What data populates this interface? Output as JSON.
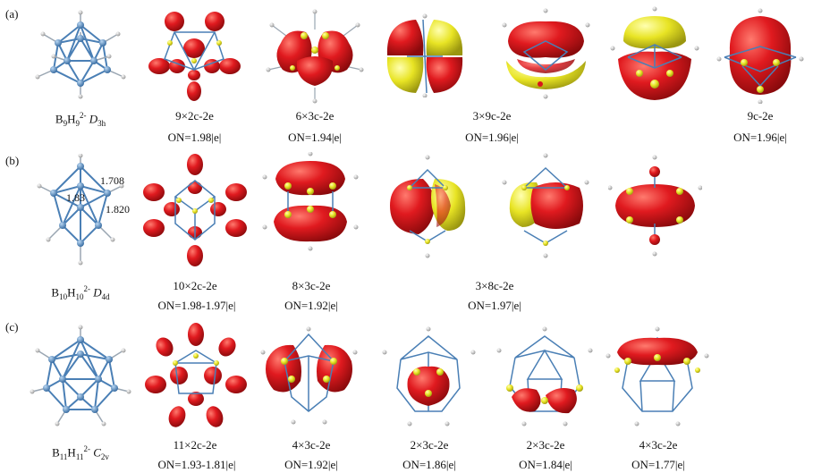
{
  "rows": [
    {
      "label": "(a)",
      "formula": {
        "b": "B",
        "bn": "9",
        "h": "H",
        "hn": "9",
        "charge": "2-",
        "sym": "D",
        "symsub": "3h"
      },
      "panels": [
        {
          "bonding": "9×2c-2e",
          "on": "ON=1.98|e|"
        },
        {
          "bonding": "6×3c-2e",
          "on": "ON=1.94|e|"
        },
        {
          "bonding": "3×9c-2e",
          "on": "ON=1.96|e|"
        },
        {
          "bonding": "9c-2e",
          "on": "ON=1.96|e|"
        }
      ]
    },
    {
      "label": "(b)",
      "formula": {
        "b": "B",
        "bn": "10",
        "h": "H",
        "hn": "10",
        "charge": "2-",
        "sym": "D",
        "symsub": "4d"
      },
      "bond_lengths": [
        "1.708",
        "1.83",
        "1.820"
      ],
      "panels": [
        {
          "bonding": "10×2c-2e",
          "on": "ON=1.98-1.97|e|"
        },
        {
          "bonding": "8×3c-2e",
          "on": "ON=1.92|e|"
        },
        {
          "bonding": "3×8c-2e",
          "on": "ON=1.97|e|"
        }
      ]
    },
    {
      "label": "(c)",
      "formula": {
        "b": "B",
        "bn": "11",
        "h": "H",
        "hn": "11",
        "charge": "2-",
        "sym": "C",
        "symsub": "2v"
      },
      "panels": [
        {
          "bonding": "11×2c-2e",
          "on": "ON=1.93-1.81|e|"
        },
        {
          "bonding": "4×3c-2e",
          "on": "ON=1.92|e|"
        },
        {
          "bonding": "2×3c-2e",
          "on": "ON=1.86|e|"
        },
        {
          "bonding": "2×3c-2e",
          "on": "ON=1.84|e|"
        },
        {
          "bonding": "4×3c-2e",
          "on": "ON=1.77|e|"
        }
      ]
    }
  ],
  "colors": {
    "lobe_red": "#d9161c",
    "lobe_yellow": "#e6e61e",
    "bond": "#4a7fb5",
    "h_atom": "#c8c8c8"
  }
}
